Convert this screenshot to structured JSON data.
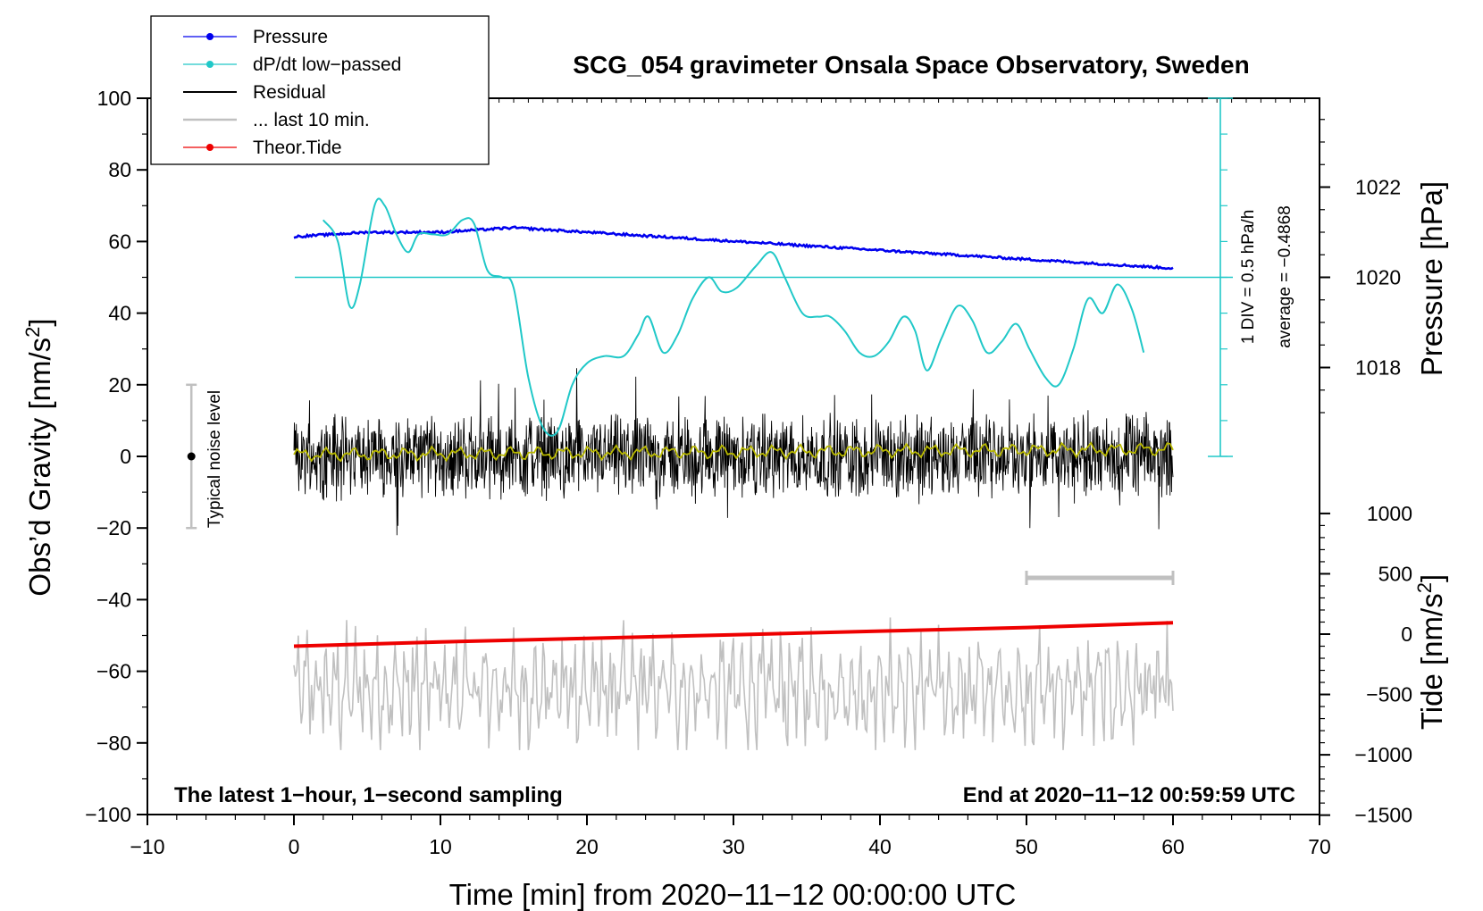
{
  "chart_data": {
    "type": "line",
    "title": "SCG_054 gravimeter Onsala Space Observatory, Sweden",
    "xlabel": "Time [min] from 2020−11−12 00:00:00 UTC",
    "ylabel_left": "Obs’d Gravity [nm/s",
    "ylabel_left_sup": "2",
    "ylabel_left_end": "]",
    "ylabel_right_pressure": "Pressure [hPa]",
    "ylabel_right_tide": "Tide [nm/s",
    "ylabel_right_tide_sup": "2",
    "ylabel_right_tide_end": "]",
    "xlim": [
      -10,
      70
    ],
    "ylim_left": [
      -100,
      100
    ],
    "x_ticks": [
      "−10",
      "0",
      "10",
      "20",
      "30",
      "40",
      "50",
      "60",
      "70"
    ],
    "y_ticks_left": [
      "100",
      "80",
      "60",
      "40",
      "20",
      "0",
      "−20",
      "−40",
      "−60",
      "−80",
      "−100"
    ],
    "pressure_ticks": [
      "1022",
      "1020",
      "1018"
    ],
    "tide_ticks": [
      "1000",
      "500",
      "0",
      "−500",
      "−1000",
      "−1500"
    ],
    "legend": [
      {
        "label": "Pressure",
        "color": "#0000ee",
        "marker": true
      },
      {
        "label": "dP/dt low−passed",
        "color": "#20c8c8",
        "marker": true
      },
      {
        "label": "Residual",
        "color": "#000000",
        "marker": false
      },
      {
        "label": "... last 10 min.",
        "color": "#c0c0c0",
        "marker": false
      },
      {
        "label": "Theor.Tide",
        "color": "#ee0000",
        "marker": true
      }
    ],
    "annotations": {
      "bottom_left": "The latest 1−hour, 1−second sampling",
      "bottom_right": "End at 2020−11−12 00:59:59 UTC",
      "noise_label": "Typical noise level",
      "div_label": "1 DIV = 0.5 hPa/h",
      "average_label": "average = −0.4868"
    },
    "pressure_series": {
      "name": "Pressure",
      "unit": "hPa",
      "x": [
        0,
        5,
        10,
        15,
        20,
        25,
        30,
        35,
        40,
        45,
        50,
        55,
        60
      ],
      "values": [
        1020.9,
        1021.0,
        1021.0,
        1021.1,
        1021.0,
        1020.9,
        1020.8,
        1020.7,
        1020.6,
        1020.5,
        1020.4,
        1020.3,
        1020.2
      ]
    },
    "dpdt_series": {
      "name": "dP/dt low−passed",
      "unit": "nm/s2 (left axis scale)",
      "x": [
        2,
        3,
        3.8,
        4.5,
        5.5,
        6.2,
        7,
        7.8,
        8.5,
        9.5,
        10.5,
        11.5,
        12.3,
        13.2,
        14.2,
        15,
        16,
        17,
        18,
        19,
        20,
        21.2,
        22.5,
        23.5,
        24.2,
        25.2,
        26.2,
        27.2,
        28.3,
        29.2,
        30.2,
        31.5,
        32.6,
        33.5,
        34.7,
        35.8,
        36.6,
        37.6,
        38.6,
        39.6,
        40.6,
        41.6,
        42.4,
        43.2,
        44.2,
        45.3,
        46.3,
        47.3,
        48.3,
        49.3,
        50.2,
        51.3,
        52.2,
        53.2,
        54.2,
        55.2,
        56.2,
        57.2,
        58
      ],
      "values": [
        66,
        60,
        42,
        48,
        70,
        70,
        62,
        57,
        62,
        62,
        62,
        66,
        65,
        52,
        50,
        47,
        22,
        8,
        7,
        20,
        26,
        28,
        28,
        34,
        39,
        29,
        34,
        44,
        50,
        46,
        47,
        53,
        57,
        50,
        40,
        39,
        39,
        35,
        29,
        28,
        32,
        39,
        35,
        24,
        33,
        42,
        38,
        29,
        32,
        37,
        30,
        22,
        20,
        30,
        44,
        40,
        48,
        41,
        29
      ]
    },
    "residual_series": {
      "name": "Residual",
      "unit": "nm/s2",
      "x_range": [
        0,
        60
      ],
      "typical_range": [
        -20,
        20
      ],
      "smoothed_mean_range": [
        -2,
        3
      ]
    },
    "last10_series": {
      "name": "... last 10 min.",
      "unit": "nm/s2",
      "x_range": [
        0,
        60
      ],
      "center": -65,
      "typical_range": [
        -82,
        -44
      ]
    },
    "tide_series": {
      "name": "Theor.Tide",
      "unit": "nm/s2",
      "x": [
        0,
        10,
        20,
        30,
        40,
        50,
        60
      ],
      "values": [
        -100,
        -65,
        -35,
        -5,
        25,
        55,
        95
      ]
    },
    "noise_level": {
      "x": -7,
      "center": 0,
      "range": [
        -20,
        20
      ]
    },
    "last10_bar": {
      "x_range": [
        50,
        60
      ]
    }
  }
}
